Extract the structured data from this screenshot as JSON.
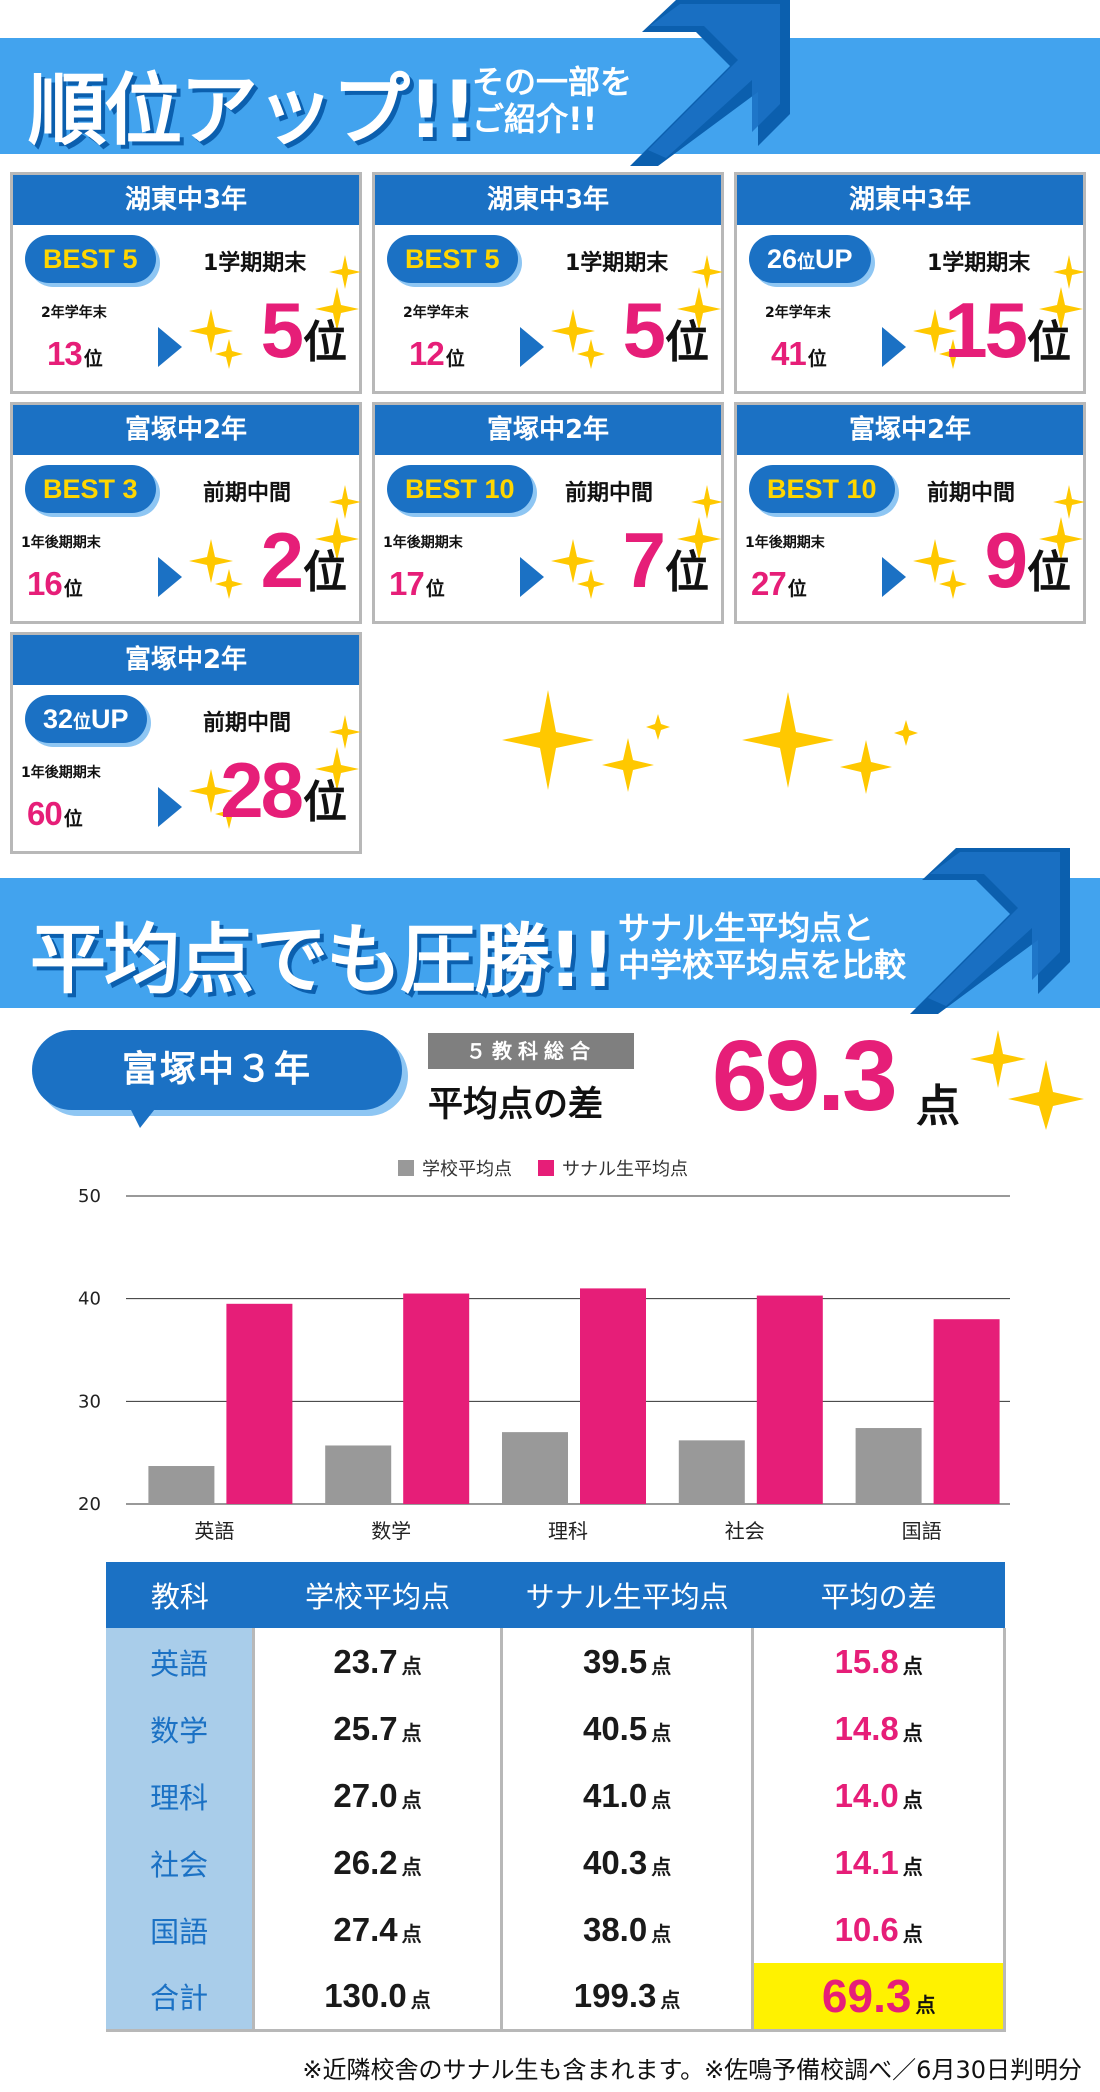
{
  "banner1": {
    "title": "順位アップ!!",
    "subtitle": "その一部を\nご紹介!!"
  },
  "cards": [
    {
      "school": "湖東中3年",
      "badge": "BEST 5",
      "badge_type": "best",
      "term_before": "2年学年末",
      "rank_before": "13",
      "term_after": "1学期期末",
      "rank_after": "5",
      "unit": "位"
    },
    {
      "school": "湖東中3年",
      "badge": "BEST 5",
      "badge_type": "best",
      "term_before": "2年学年末",
      "rank_before": "12",
      "term_after": "1学期期末",
      "rank_after": "5",
      "unit": "位"
    },
    {
      "school": "湖東中3年",
      "badge_num": "26",
      "badge_unit": "位",
      "badge_suffix": "UP",
      "badge_type": "up",
      "term_before": "2年学年末",
      "rank_before": "41",
      "term_after": "1学期期末",
      "rank_after": "15",
      "unit": "位"
    },
    {
      "school": "富塚中2年",
      "badge": "BEST 3",
      "badge_type": "best",
      "term_before": "1年後期期末",
      "rank_before": "16",
      "term_after": "前期中間",
      "rank_after": "2",
      "unit": "位"
    },
    {
      "school": "富塚中2年",
      "badge": "BEST 10",
      "badge_type": "best",
      "term_before": "1年後期期末",
      "rank_before": "17",
      "term_after": "前期中間",
      "rank_after": "7",
      "unit": "位"
    },
    {
      "school": "富塚中2年",
      "badge": "BEST 10",
      "badge_type": "best",
      "term_before": "1年後期期末",
      "rank_before": "27",
      "term_after": "前期中間",
      "rank_after": "9",
      "unit": "位"
    },
    {
      "school": "富塚中2年",
      "badge_num": "32",
      "badge_unit": "位",
      "badge_suffix": "UP",
      "badge_type": "up",
      "term_before": "1年後期期末",
      "rank_before": "60",
      "term_after": "前期中間",
      "rank_after": "28",
      "unit": "位"
    }
  ],
  "banner2": {
    "title": "平均点でも圧勝!!",
    "subtitle": "サナル生平均点と\n中学校平均点を比較"
  },
  "average": {
    "school": "富塚中３年",
    "tag": "５教科総合",
    "label": "平均点の差",
    "value": "69.3",
    "unit": "点"
  },
  "chart_data": {
    "type": "bar",
    "categories": [
      "英語",
      "数学",
      "理科",
      "社会",
      "国語"
    ],
    "series": [
      {
        "name": "学校平均点",
        "values": [
          23.7,
          25.7,
          27.0,
          26.2,
          27.4
        ],
        "color": "#999999"
      },
      {
        "name": "サナル生平均点",
        "values": [
          39.5,
          40.5,
          41.0,
          40.3,
          38.0
        ],
        "color": "#e61e78"
      }
    ],
    "yticks": [
      50,
      40,
      30,
      20
    ],
    "ylim": [
      20,
      50
    ],
    "grid": true,
    "legend": "top-center"
  },
  "table": {
    "headers": [
      "教科",
      "学校平均点",
      "サナル生平均点",
      "平均の差"
    ],
    "unit": "点",
    "rows": [
      {
        "subject": "英語",
        "school": "23.7",
        "sanaru": "39.5",
        "diff": "15.8"
      },
      {
        "subject": "数学",
        "school": "25.7",
        "sanaru": "40.5",
        "diff": "14.8"
      },
      {
        "subject": "理科",
        "school": "27.0",
        "sanaru": "41.0",
        "diff": "14.0"
      },
      {
        "subject": "社会",
        "school": "26.2",
        "sanaru": "40.3",
        "diff": "14.1"
      },
      {
        "subject": "国語",
        "school": "27.4",
        "sanaru": "38.0",
        "diff": "10.6"
      },
      {
        "subject": "合計",
        "school": "130.0",
        "sanaru": "199.3",
        "diff": "69.3"
      }
    ]
  },
  "footnote": "※近隣校舎のサナル生も含まれます。※佐鳴予備校調べ／6月30日判明分",
  "colors": {
    "blue": "#1b71c4",
    "light_blue": "#42a3ee",
    "pink": "#e61e78",
    "yellow": "#fff200",
    "gold": "#ffc800"
  }
}
